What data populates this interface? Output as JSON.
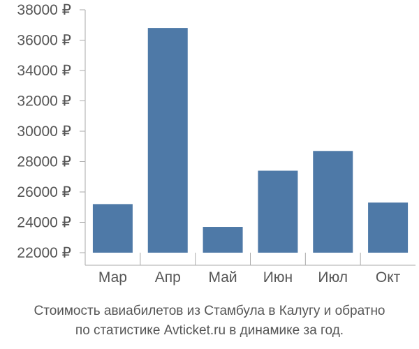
{
  "chart_data": {
    "type": "bar",
    "categories": [
      "Мар",
      "Апр",
      "Май",
      "Июн",
      "Июл",
      "Окт"
    ],
    "values": [
      25200,
      36800,
      23700,
      27400,
      28700,
      25300
    ],
    "ylim": [
      22000,
      38000
    ],
    "yticks": [
      {
        "value": 22000,
        "label": "22000 ₽"
      },
      {
        "value": 24000,
        "label": "24000 ₽"
      },
      {
        "value": 26000,
        "label": "26000 ₽"
      },
      {
        "value": 28000,
        "label": "28000 ₽"
      },
      {
        "value": 30000,
        "label": "30000 ₽"
      },
      {
        "value": 32000,
        "label": "32000 ₽"
      },
      {
        "value": 34000,
        "label": "34000 ₽"
      },
      {
        "value": 36000,
        "label": "36000 ₽"
      },
      {
        "value": 38000,
        "label": "38000 ₽"
      }
    ],
    "grid": false,
    "bar_color": "#4e79a7",
    "axis_color": "#aaaaaa"
  },
  "caption": {
    "line1": "Стоимость авиабилетов из Стамбула в Калугу и обратно",
    "line2": "по статистике Avticket.ru в динамике за год."
  }
}
